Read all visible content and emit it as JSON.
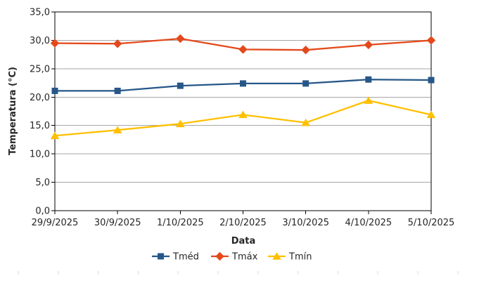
{
  "chart_data": {
    "type": "line",
    "title": "",
    "xlabel": "Data",
    "ylabel": "Temperatura (°C)",
    "categories": [
      "29/9/2025",
      "30/9/2025",
      "1/10/2025",
      "2/10/2025",
      "3/10/2025",
      "4/10/2025",
      "5/10/2025"
    ],
    "series": [
      {
        "name": "Tméd",
        "marker": "square",
        "color": "#265788",
        "values": [
          21.1,
          21.1,
          22.0,
          22.4,
          22.4,
          23.1,
          23.0
        ]
      },
      {
        "name": "Tmáx",
        "marker": "diamond",
        "color": "#E4491C",
        "values": [
          29.5,
          29.4,
          30.3,
          28.4,
          28.3,
          29.2,
          30.0
        ]
      },
      {
        "name": "Tmín",
        "marker": "triangle",
        "color": "#FFC000",
        "values": [
          13.2,
          14.2,
          15.3,
          16.9,
          15.5,
          19.4,
          16.9
        ]
      }
    ],
    "ylim": [
      0,
      35
    ],
    "ytick_step": 5,
    "y_tick_labels": [
      "0,0",
      "5,0",
      "10,0",
      "15,0",
      "20,0",
      "25,0",
      "30,0",
      "35,0"
    ],
    "decimal_separator": ",",
    "grid": "horizontal",
    "legend_position": "bottom"
  },
  "colors": {
    "axis": "#000000",
    "gridline": "#A6A6A6",
    "text": "#262626",
    "background": "#FFFFFF",
    "sheet_cell_tick": "#D6D6D6"
  }
}
